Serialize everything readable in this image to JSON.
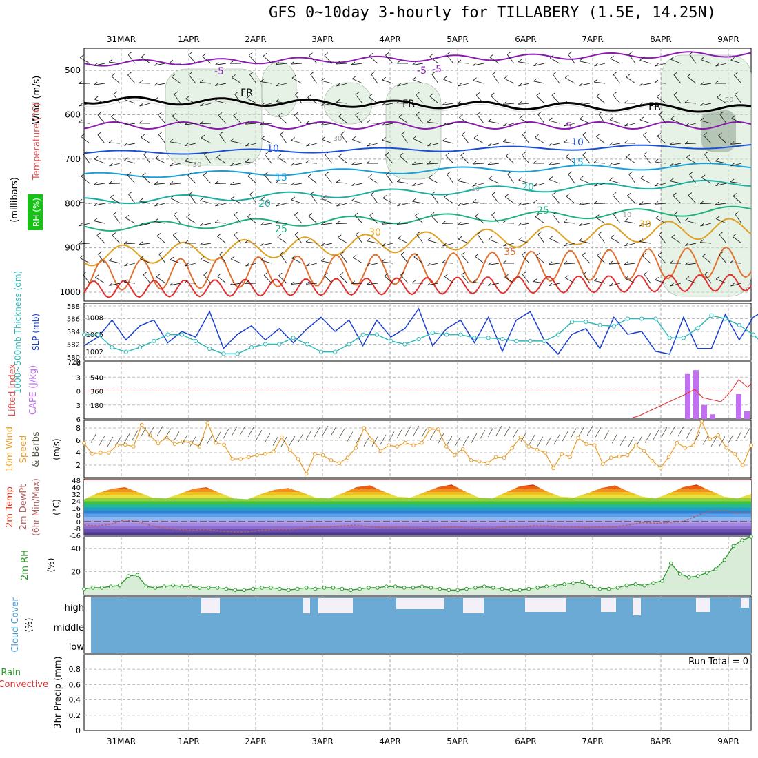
{
  "title": "GFS 0~10day 3-hourly for TILLABERY (1.5E, 14.25N)",
  "dates": [
    "31MAR",
    "1APR",
    "2APR",
    "3APR",
    "4APR",
    "5APR",
    "6APR",
    "7APR",
    "8APR",
    "9APR"
  ],
  "run_total": "Run Total = 0",
  "panels": {
    "upper": {
      "ylabel_wind": "Wind (m/s)",
      "ylabel_temp": "Temperature (°C)",
      "ylabel_rh": "RH (%)",
      "ylabel_mb": "(millibars)",
      "yticks": [
        "500",
        "600",
        "700",
        "800",
        "900",
        "1000"
      ]
    },
    "pressure": {
      "ylabel_thick": "1000~500mb Thickness (dm)",
      "ylabel_slp": "SLP (mb)",
      "ticks_left": [
        "588",
        "586",
        "584",
        "582",
        "580"
      ],
      "ticks_right": [
        "1008",
        "1005",
        "1002"
      ]
    },
    "cape": {
      "ylabel_li": "Lifted Index",
      "ylabel_cape": "CAPE (J/kg)",
      "ticks_left": [
        "-6",
        "-3",
        "0",
        "3",
        "6"
      ],
      "ticks_right": [
        "720",
        "540",
        "360",
        "180"
      ]
    },
    "wind10": {
      "ylabel_a": "10m Wind",
      "ylabel_b": "Speed",
      "ylabel_c": "& Barbs",
      "ylabel_unit": "(m/s)",
      "ticks": [
        "8",
        "6",
        "4",
        "2"
      ]
    },
    "temp2m": {
      "ylabel_a": "2m Temp",
      "ylabel_b": "2m DewPt",
      "ylabel_c": "(6hr Min/Max)",
      "ylabel_unit": "(°C)",
      "ticks": [
        "48",
        "40",
        "32",
        "24",
        "16",
        "8",
        "0",
        "-8",
        "-16"
      ]
    },
    "rh2m": {
      "ylabel": "2m RH",
      "ylabel_unit": "(%)",
      "ticks": [
        "40",
        "20"
      ]
    },
    "cloud": {
      "ylabel": "Cloud Cover",
      "ylabel_unit": "(%)",
      "levels": [
        "high",
        "middle",
        "low"
      ]
    },
    "precip": {
      "ylabel_a": "Total / Rain",
      "ylabel_b": "Convective",
      "ylabel_c": "3hr Precip (mm)",
      "ticks": [
        "0.8",
        "0.6",
        "0.4",
        "0.2",
        "0"
      ]
    }
  },
  "contour_labels": {
    "upper": [
      "-5",
      "-5",
      "-5",
      "FR",
      "FR",
      "FR",
      "5",
      "10",
      "10",
      "15",
      "15",
      "20",
      "20",
      "25",
      "25",
      "30",
      "30",
      "35",
      "30",
      "30",
      "50",
      "10",
      "10",
      "10"
    ]
  },
  "colors": {
    "slp": "#1a3fcf",
    "thickness": "#2fb8b8",
    "cape": "#c070f0",
    "lifted": "#e03030",
    "wind10": "#e8a030",
    "temp": "#d03010",
    "dew": "#b06060",
    "rh2m": "#2a9a2a",
    "cloud": "#6aaad4"
  },
  "chart_data": [
    {
      "type": "line",
      "name": "upper-air",
      "xlabel": "",
      "ylabel": "millibars",
      "ylim": [
        1000,
        450
      ],
      "x": [
        "31MAR",
        "1APR",
        "2APR",
        "3APR",
        "4APR",
        "5APR",
        "6APR",
        "7APR",
        "8APR",
        "9APR"
      ],
      "series": [
        {
          "name": "FR",
          "values": [
            570,
            560,
            565,
            560,
            565,
            565,
            570,
            565,
            570,
            585
          ]
        },
        {
          "name": "10",
          "values": [
            680,
            670,
            665,
            665,
            665,
            660,
            660,
            665,
            670,
            670
          ]
        }
      ]
    },
    {
      "type": "line",
      "name": "pressure",
      "xlabel": "",
      "ylabel": "SLP (mb)",
      "series": [
        {
          "name": "SLP (mb)",
          "values": [
            1003,
            1004.5,
            1007.5,
            1004,
            1006.5,
            1007.5,
            1003.5,
            1005.5,
            1004.5,
            1009,
            1002.5,
            1005,
            1006.5,
            1004,
            1006,
            1003.5,
            1006,
            1008,
            1005.5,
            1007.5,
            1003,
            1007.5,
            1004.5,
            1006,
            1009.5,
            1003,
            1006,
            1007.5,
            1003.5,
            1008,
            1002,
            1007.5,
            1009,
            1004,
            1001.5,
            1005,
            1006,
            1002.5,
            1008,
            1005,
            1005.5,
            1002,
            1001.5,
            1008,
            1002.5,
            1002.5,
            1008.5,
            1004,
            1008,
            1009.5
          ]
        },
        {
          "name": "1000~500mb Thickness (dm)",
          "values": [
            583.5,
            583.5,
            581.5,
            580.8,
            581.5,
            582.5,
            583.5,
            583.5,
            582.5,
            581.3,
            580.5,
            580.5,
            581.5,
            582,
            582,
            583,
            582,
            580.8,
            580.8,
            582,
            583.5,
            583.5,
            582.5,
            582,
            582.8,
            583.8,
            583.5,
            583.5,
            583,
            583,
            582.8,
            582.5,
            582.5,
            582.5,
            583.5,
            585.5,
            585.5,
            585,
            584.8,
            586,
            586,
            586,
            583,
            583,
            584.5,
            586.5,
            586,
            585,
            583.5,
            581.5
          ]
        }
      ]
    },
    {
      "type": "bar",
      "name": "cape",
      "ylabel": "CAPE (J/kg)",
      "categories": [
        "8APR 09",
        "8APR 12",
        "8APR 15",
        "8APR 18",
        "9APR 03",
        "9APR 06"
      ],
      "values": [
        580,
        630,
        180,
        60,
        320,
        100
      ],
      "ylim": [
        0,
        720
      ]
    },
    {
      "type": "line",
      "name": "10m-wind",
      "ylabel": "(m/s)",
      "ylim": [
        0,
        9
      ],
      "values": [
        5.5,
        3.8,
        4,
        4,
        5.2,
        5.3,
        5,
        8.5,
        6.8,
        5.5,
        6.5,
        5.4,
        5.8,
        5.6,
        5,
        8.8,
        5.6,
        5.3,
        3,
        3,
        3.3,
        3.6,
        3.8,
        4.2,
        6.5,
        4.4,
        3,
        0.6,
        3.8,
        3.6,
        2.8,
        2.3,
        3.2,
        4.8,
        8,
        6,
        4.3,
        5.2,
        5,
        5.6,
        5.2,
        5.6,
        7.8,
        7.8,
        5,
        3.6,
        4.6,
        2.8,
        2.6,
        2.3,
        3.3,
        3.2,
        4.8,
        6.5,
        5,
        4.5,
        4,
        1.5,
        3.8,
        3.3,
        6.4,
        5.4,
        5.2,
        2.2,
        3.2,
        3.4,
        3.6,
        5.2,
        4.3,
        2.7,
        1.6,
        3.3,
        5.6,
        4.8,
        5.2,
        9,
        6.2,
        6.8,
        4.8,
        3.8,
        2,
        5.2
      ]
    },
    {
      "type": "area",
      "name": "2m-temp",
      "ylabel": "(°C)",
      "ylim": [
        -16,
        48
      ],
      "series": [
        {
          "name": "2m Temp",
          "values": [
            26,
            33,
            38,
            40,
            34,
            28,
            27,
            32,
            38,
            40,
            33,
            27,
            26,
            32,
            37,
            39,
            34,
            28,
            27,
            33,
            40,
            42,
            35,
            29,
            28,
            34,
            40,
            43,
            35,
            28,
            27,
            34,
            41,
            43,
            35,
            29,
            28,
            33,
            39,
            42,
            35,
            29,
            27,
            33,
            40,
            43,
            36,
            29,
            27,
            32
          ]
        },
        {
          "name": "2m DewPt",
          "values": [
            -4,
            -5,
            -3,
            2,
            0,
            -5,
            -8,
            -9,
            -10,
            -9,
            -11,
            -12,
            -12,
            -10,
            -9,
            -9,
            -8,
            -6,
            -6,
            -5,
            -4,
            -6,
            -7,
            -7,
            -7,
            -8,
            -7,
            -6,
            -7,
            -8,
            -8,
            -6,
            -6,
            -5,
            -5,
            -6,
            -6,
            -7,
            -6,
            -6,
            -4,
            -1,
            -2,
            -1,
            0,
            7,
            12,
            13,
            10,
            11
          ]
        }
      ]
    },
    {
      "type": "area",
      "name": "2m-RH",
      "ylabel": "(%)",
      "ylim": [
        0,
        50
      ],
      "values": [
        5,
        6,
        6,
        7,
        8,
        16,
        17,
        7,
        6,
        7,
        8,
        7,
        7,
        6,
        6,
        6,
        5,
        4,
        4,
        5,
        6,
        6,
        5,
        4,
        5,
        6,
        5,
        6,
        6,
        5,
        4,
        5,
        6,
        6,
        7,
        7,
        6,
        6,
        7,
        6,
        5,
        4,
        4,
        5,
        6,
        7,
        6,
        5,
        4,
        4,
        5,
        6,
        7,
        8,
        9,
        10,
        11,
        7,
        5,
        5,
        6,
        8,
        9,
        8,
        10,
        12,
        27,
        18,
        15,
        16,
        19,
        22,
        30,
        42,
        47,
        50
      ]
    },
    {
      "type": "bar",
      "name": "cloud-cover",
      "categories": [
        "high",
        "middle",
        "low"
      ],
      "values": [
        0,
        0,
        0
      ]
    },
    {
      "type": "bar",
      "name": "precip",
      "ylabel": "3hr Precip (mm)",
      "ylim": [
        0,
        1
      ],
      "values": [
        0
      ]
    }
  ]
}
